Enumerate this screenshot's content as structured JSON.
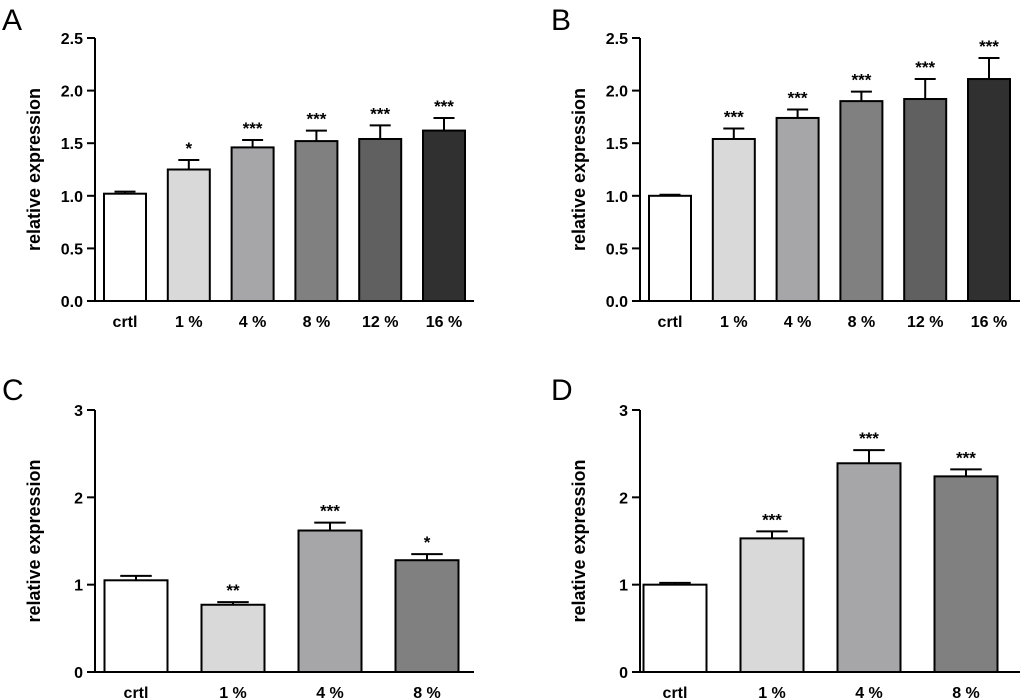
{
  "colors": {
    "fills": [
      "#ffffff",
      "#d9d9d9",
      "#a6a6a8",
      "#808080",
      "#606060",
      "#303030"
    ],
    "stroke": "#000000"
  },
  "chart_data": [
    {
      "type": "bar",
      "panel": "A",
      "categories": [
        "crtl",
        "1 %",
        "4 %",
        "8 %",
        "12 %",
        "16 %"
      ],
      "values": [
        1.02,
        1.25,
        1.46,
        1.52,
        1.54,
        1.62
      ],
      "errors": [
        0.02,
        0.09,
        0.07,
        0.1,
        0.13,
        0.12
      ],
      "significance": [
        "",
        "*",
        "***",
        "***",
        "***",
        "***"
      ],
      "ylabel": "relative expression",
      "ylim": [
        0,
        2.5
      ],
      "yticks": [
        0.0,
        0.5,
        1.0,
        1.5,
        2.0,
        2.5
      ],
      "ytick_labels": [
        "0.0",
        "0.5",
        "1.0",
        "1.5",
        "2.0",
        "2.5"
      ]
    },
    {
      "type": "bar",
      "panel": "B",
      "categories": [
        "crtl",
        "1 %",
        "4 %",
        "8 %",
        "12 %",
        "16 %"
      ],
      "values": [
        1.0,
        1.54,
        1.74,
        1.9,
        1.92,
        2.11
      ],
      "errors": [
        0.01,
        0.1,
        0.08,
        0.09,
        0.19,
        0.2
      ],
      "significance": [
        "",
        "***",
        "***",
        "***",
        "***",
        "***"
      ],
      "ylabel": "relative expression",
      "ylim": [
        0,
        2.5
      ],
      "yticks": [
        0.0,
        0.5,
        1.0,
        1.5,
        2.0,
        2.5
      ],
      "ytick_labels": [
        "0.0",
        "0.5",
        "1.0",
        "1.5",
        "2.0",
        "2.5"
      ]
    },
    {
      "type": "bar",
      "panel": "C",
      "categories": [
        "crtl",
        "1 %",
        "4 %",
        "8 %"
      ],
      "values": [
        1.05,
        0.77,
        1.62,
        1.28
      ],
      "errors": [
        0.05,
        0.03,
        0.09,
        0.07
      ],
      "significance": [
        "",
        "**",
        "***",
        "*"
      ],
      "ylabel": "relative expression",
      "ylim": [
        0,
        3
      ],
      "yticks": [
        0,
        1,
        2,
        3
      ],
      "ytick_labels": [
        "0",
        "1",
        "2",
        "3"
      ]
    },
    {
      "type": "bar",
      "panel": "D",
      "categories": [
        "crtl",
        "1 %",
        "4 %",
        "8 %"
      ],
      "values": [
        1.0,
        1.53,
        2.39,
        2.24
      ],
      "errors": [
        0.02,
        0.08,
        0.15,
        0.08
      ],
      "significance": [
        "",
        "***",
        "***",
        "***"
      ],
      "ylabel": "relative expression",
      "ylim": [
        0,
        3
      ],
      "yticks": [
        0,
        1,
        2,
        3
      ],
      "ytick_labels": [
        "0",
        "1",
        "2",
        "3"
      ]
    }
  ]
}
